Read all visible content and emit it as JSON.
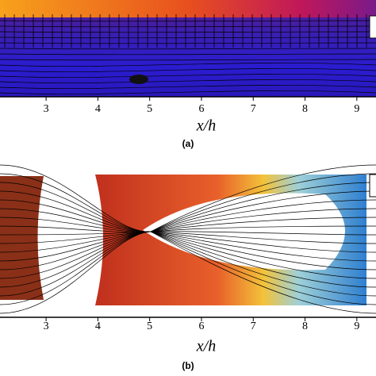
{
  "chart_data": [
    {
      "type": "field",
      "xlim": [
        2.11,
        9.37
      ],
      "xticks": [
        3,
        4,
        5,
        6,
        7,
        8,
        9
      ],
      "xlabel": "x/h",
      "caption": "(a)"
    },
    {
      "type": "field",
      "xlim": [
        2.11,
        9.37
      ],
      "xticks": [
        3,
        4,
        5,
        6,
        7,
        8,
        9
      ],
      "xlabel": "x/h",
      "caption": "(b)"
    }
  ]
}
